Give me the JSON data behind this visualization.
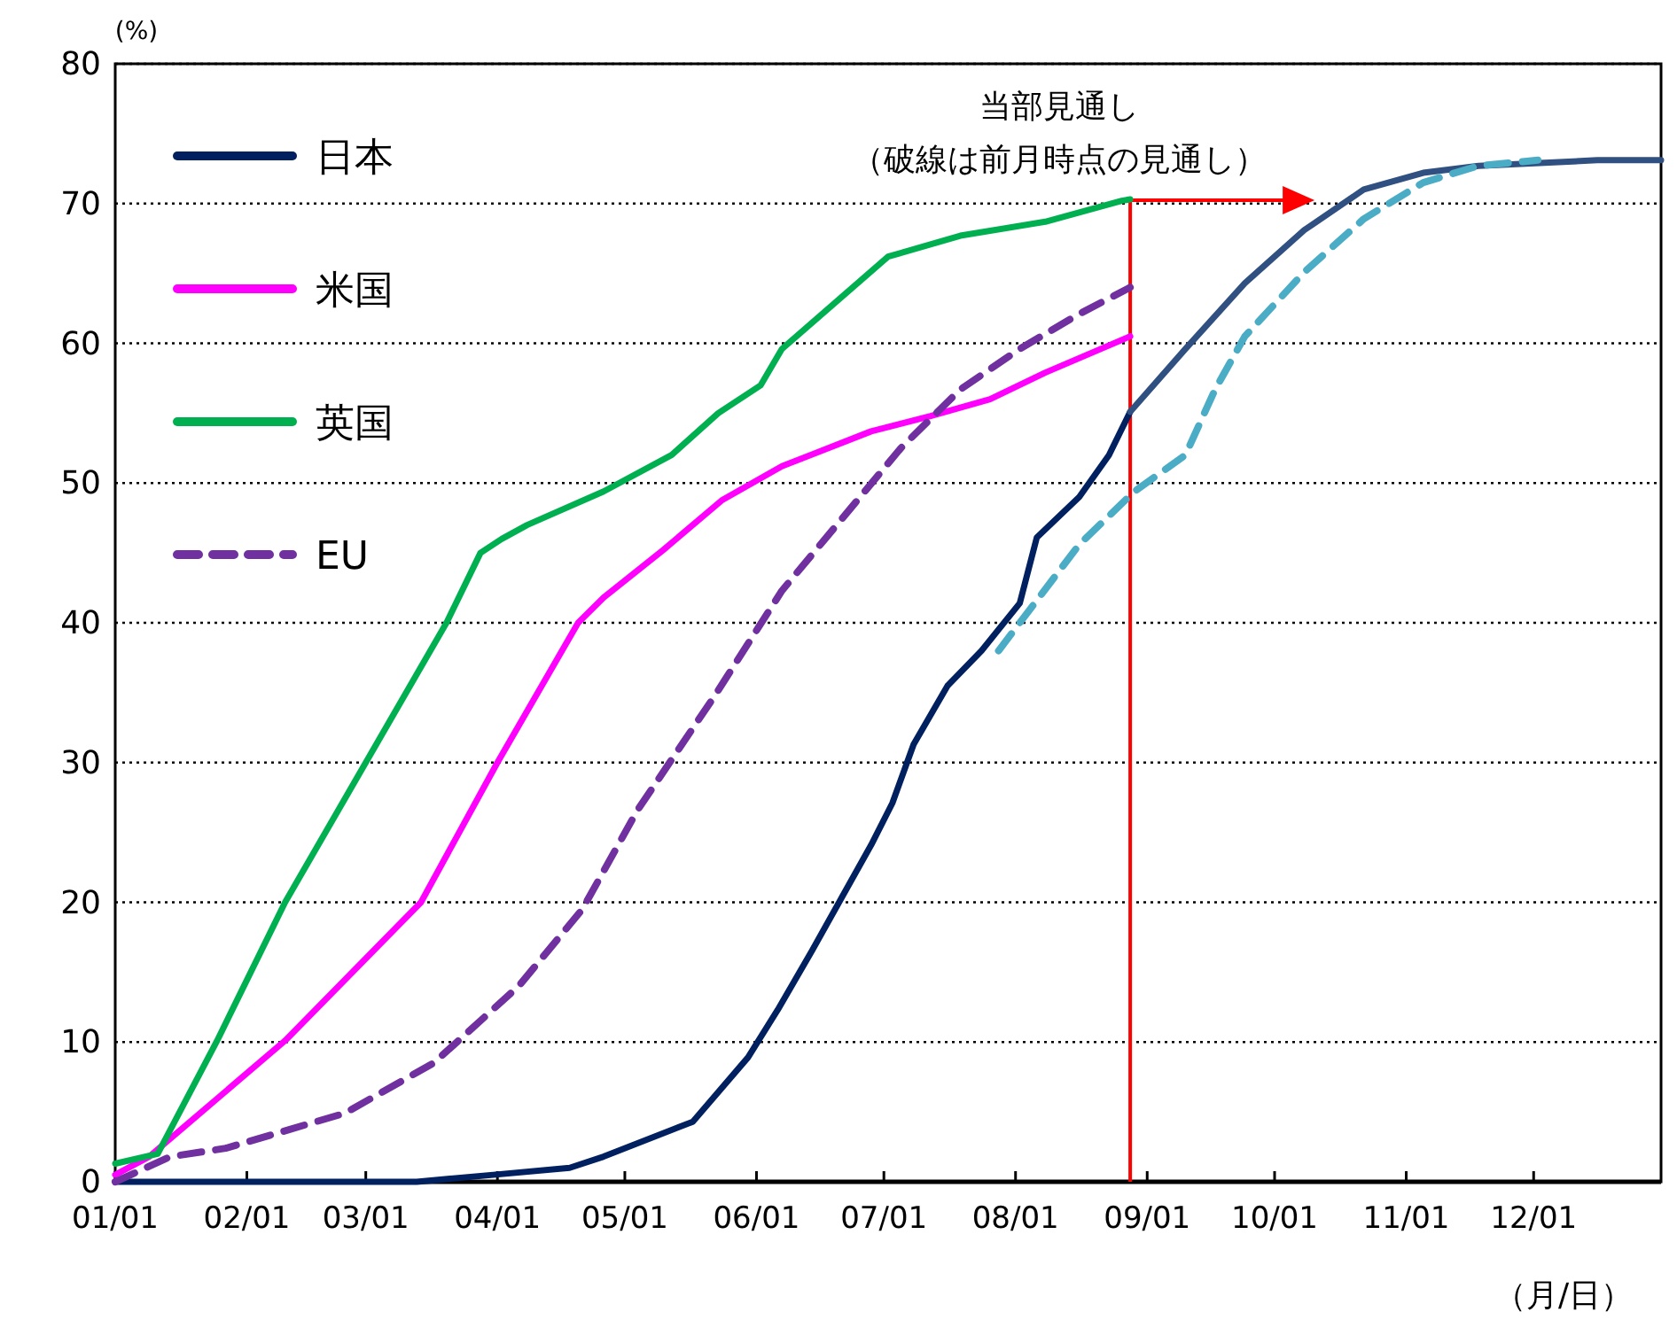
{
  "chart_data": {
    "type": "line",
    "ylabel": "(%)",
    "xlabel": "（月/日）",
    "xlim": [
      "--01-01",
      "--12-31"
    ],
    "xticks": [
      {
        "value": "--01-01",
        "label": "01/01"
      },
      {
        "value": "--02-01",
        "label": "02/01"
      },
      {
        "value": "--03-01",
        "label": "03/01"
      },
      {
        "value": "--04-01",
        "label": "04/01"
      },
      {
        "value": "--05-01",
        "label": "05/01"
      },
      {
        "value": "--06-01",
        "label": "06/01"
      },
      {
        "value": "--07-01",
        "label": "07/01"
      },
      {
        "value": "--08-01",
        "label": "08/01"
      },
      {
        "value": "--09-01",
        "label": "09/01"
      },
      {
        "value": "--10-01",
        "label": "10/01"
      },
      {
        "value": "--11-01",
        "label": "11/01"
      },
      {
        "value": "--12-01",
        "label": "12/01"
      }
    ],
    "ylim": [
      0,
      80
    ],
    "yticks": [
      0,
      10,
      20,
      30,
      40,
      50,
      60,
      70,
      80
    ],
    "grid": "y",
    "legend": "top left",
    "marker": "none",
    "series": [
      {
        "name": "日本",
        "color": "#002060",
        "line_style": "solid",
        "x": [
          "--01-01",
          "--03-13",
          "--03-31",
          "--04-18",
          "--04-26",
          "--05-17",
          "--05-30",
          "--06-06",
          "--06-14",
          "--06-21",
          "--06-28",
          "--07-03",
          "--07-08",
          "--07-16",
          "--07-24",
          "--08-02",
          "--08-06",
          "--08-16",
          "--08-23",
          "--08-28"
        ],
        "values": [
          0,
          0,
          0.5,
          1.0,
          1.8,
          4.3,
          8.9,
          12.3,
          16.5,
          20.3,
          24.1,
          27.1,
          31.3,
          35.5,
          38.0,
          41.4,
          46.1,
          49,
          52,
          55.1
        ]
      },
      {
        "name": "米国",
        "color": "#ff00ff",
        "line_style": "solid",
        "x": [
          "--01-01",
          "--01-09",
          "--02-10",
          "--03-14",
          "--04-01",
          "--04-20",
          "--04-26",
          "--05-10",
          "--05-24",
          "--06-07",
          "--06-28",
          "--07-12",
          "--07-26",
          "--08-08",
          "--08-28"
        ],
        "values": [
          0.5,
          1.8,
          10.1,
          20,
          30,
          40,
          41.8,
          45.2,
          48.8,
          51.2,
          53.7,
          54.8,
          56.0,
          57.9,
          60.5
        ]
      },
      {
        "name": "英国",
        "color": "#00b050",
        "line_style": "solid",
        "x": [
          "--01-01",
          "--01-11",
          "--01-25",
          "--02-10",
          "--03-01",
          "--03-20",
          "--03-28",
          "--04-02",
          "--04-08",
          "--04-26",
          "--05-12",
          "--05-23",
          "--06-02",
          "--06-07",
          "--07-02",
          "--07-19",
          "--08-08",
          "--08-26",
          "--08-28"
        ],
        "values": [
          1.3,
          2.0,
          10.1,
          20,
          30,
          40,
          45,
          46,
          47,
          49.4,
          52,
          55,
          57,
          59.6,
          66.2,
          67.7,
          68.7,
          70.2,
          70.3
        ]
      },
      {
        "name": "EU",
        "color": "#7030a0",
        "line_style": "dashed",
        "x": [
          "--01-01",
          "--01-14",
          "--01-27",
          "--02-24",
          "--03-17",
          "--04-06",
          "--04-21",
          "--05-04",
          "--05-22",
          "--06-07",
          "--06-21",
          "--07-05",
          "--07-19",
          "--08-02",
          "--08-16",
          "--08-28"
        ],
        "values": [
          0,
          1.8,
          2.4,
          4.9,
          8.5,
          14,
          19.5,
          26.6,
          34.7,
          42.3,
          47.4,
          52.5,
          56.7,
          59.6,
          62.1,
          64
        ]
      },
      {
        "color": "#2f5081",
        "line_style": "solid",
        "x": [
          "--08-28",
          "--09-10",
          "--09-24",
          "--10-08",
          "--10-22",
          "--11-05",
          "--11-18",
          "--12-16",
          "--12-31"
        ],
        "values": [
          55.1,
          59.6,
          64.3,
          68.1,
          71.0,
          72.2,
          72.7,
          73.1,
          73.1
        ]
      },
      {
        "color": "#4bacc6",
        "line_style": "dashed",
        "x": [
          "--07-28",
          "--08-16",
          "--08-29",
          "--09-10",
          "--09-17",
          "--09-24",
          "--10-08",
          "--10-22",
          "--11-05",
          "--11-18",
          "--12-02"
        ],
        "values": [
          38.0,
          45.6,
          49.4,
          52,
          56.7,
          60.5,
          65.1,
          68.9,
          71.5,
          72.7,
          73.1
        ]
      }
    ],
    "ref_lines": [
      {
        "axis": "x",
        "value": "--08-28",
        "label": "当部見通し",
        "color": "#ff0000"
      }
    ],
    "annotations": [
      "（破線は前月時点の見通し）"
    ]
  }
}
